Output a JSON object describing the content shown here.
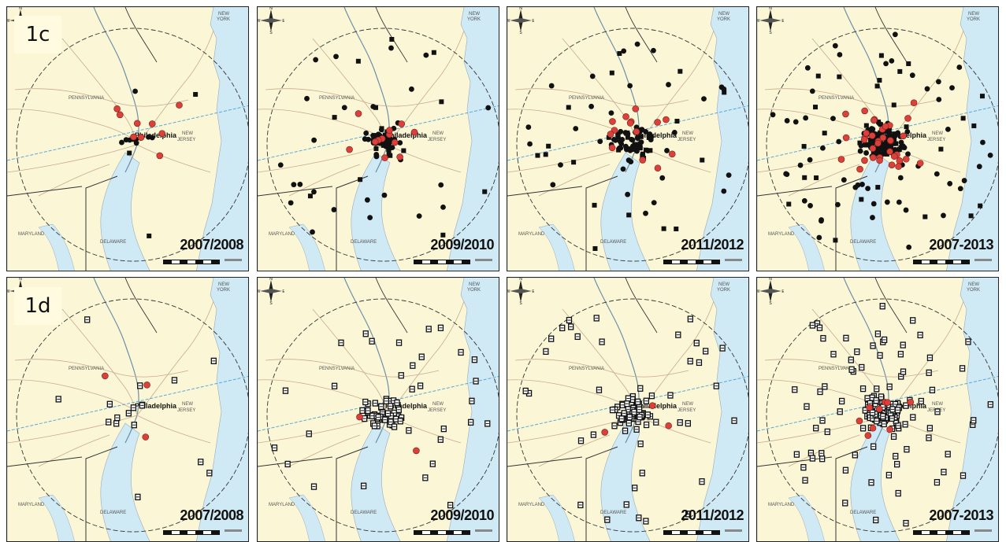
{
  "rows": [
    {
      "label": "1c",
      "panels": [
        "2007/2008",
        "2009/2010",
        "2011/2012",
        "2007-2013"
      ]
    },
    {
      "label": "1d",
      "panels": [
        "2007/2008",
        "2009/2010",
        "2011/2012",
        "2007-2013"
      ]
    }
  ],
  "map_labels": {
    "city": "Philadelphia",
    "pennsylvania": "PENNSYLVANIA",
    "new_jersey_1": "NEW",
    "new_jersey_2": "JERSEY",
    "new_york_1": "NEW",
    "new_york_2": "YORK",
    "maryland": "MARYLAND",
    "delaware": "DELAWARE",
    "compass_n": "N",
    "compass_s": "S",
    "compass_e": "E",
    "compass_w": "W"
  },
  "colors": {
    "land": "#fbf7d6",
    "water": "#cfe9f5",
    "marker_black": "#111111",
    "marker_red": "#d9413a",
    "road": "#c9a98c",
    "border": "#333333",
    "latitude_line": "#5aa9d8"
  },
  "marker_counts": {
    "1c": [
      {
        "black": 16,
        "red": 9
      },
      {
        "black": 95,
        "red": 12
      },
      {
        "black": 110,
        "red": 14
      },
      {
        "black": 230,
        "red": 35
      }
    ],
    "1d": [
      {
        "black": 20,
        "red": 3
      },
      {
        "black": 80,
        "red": 2
      },
      {
        "black": 95,
        "red": 3
      },
      {
        "black": 200,
        "red": 9
      }
    ]
  }
}
